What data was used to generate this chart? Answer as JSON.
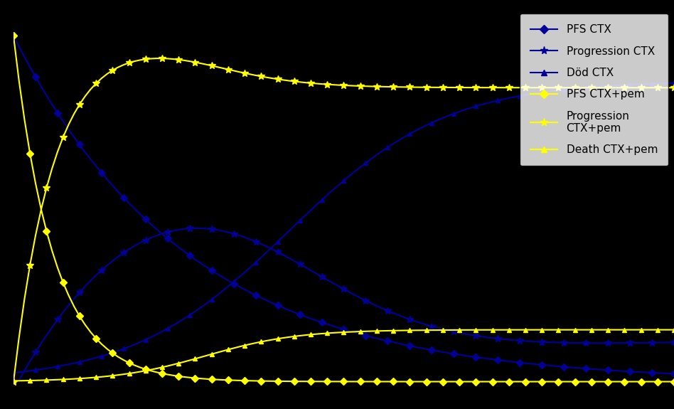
{
  "background_color": "#000000",
  "plot_bg_color": "#000000",
  "legend_bg": "#ffffff",
  "blue_color": "#000099",
  "yellow_color": "#FFFF00",
  "N": 120,
  "legend_labels": [
    "PFS CTX",
    "Progression CTX",
    "Död CTX",
    "PFS CTX+pem",
    "Progression\nCTX+pem",
    "Death CTX+pem"
  ],
  "marker_every_blue": 4,
  "marker_every_yellow": 3,
  "figsize": [
    9.48,
    5.75
  ],
  "dpi": 100
}
